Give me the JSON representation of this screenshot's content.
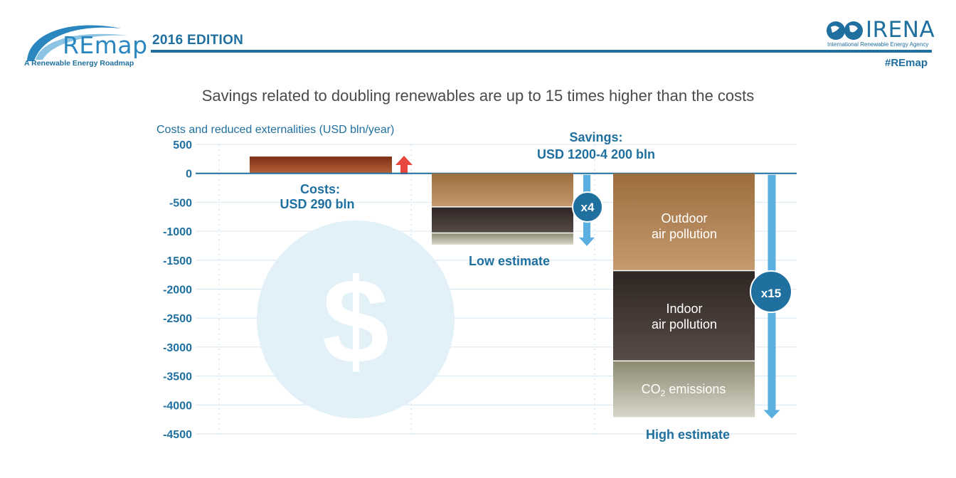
{
  "header": {
    "brand": "REmap",
    "tagline": "A Renewable Energy Roadmap",
    "edition": "2016 EDITION",
    "org": "IRENA",
    "org_subtitle": "International Renewable Energy Agency",
    "hashtag": "#REmap"
  },
  "colors": {
    "accent": "#1f6f9f",
    "arrow_light": "#5aaee0",
    "arrow_up": "#e8473f",
    "outdoor": "#a9774a",
    "indoor": "#3d302b",
    "co2": "#aaa894",
    "costs": "#8f3a1f"
  },
  "icons": {
    "coin": "dollar-coin-icon",
    "logo": "remap-swoosh-icon",
    "globe": "irena-globe-icon"
  },
  "chart_data": {
    "type": "bar",
    "title": "Savings related to doubling renewables are up to 15 times higher than the costs",
    "ylabel": "Costs and reduced externalities (USD bln/year)",
    "ylim": [
      -4500,
      500
    ],
    "yticks": [
      500,
      0,
      -500,
      -1000,
      -1500,
      -2000,
      -2500,
      -3000,
      -3500,
      -4000,
      -4500
    ],
    "yticks_text": [
      "500",
      "0",
      "-500",
      "-1000",
      "-1500",
      "-2000",
      "-2500",
      "-3000",
      "-3500",
      "-4000",
      "-4500"
    ],
    "grid": true,
    "costs": {
      "label": "Costs:",
      "value_label": "USD 290 bln",
      "value": 290
    },
    "savings": {
      "label": "Savings:",
      "value_label": "USD 1200-4 200 bln"
    },
    "categories": [
      "Low estimate",
      "High estimate"
    ],
    "series": [
      {
        "name": "Outdoor air pollution",
        "values": [
          -580,
          -1680
        ]
      },
      {
        "name": "Indoor air pollution",
        "values": [
          -450,
          -1560
        ]
      },
      {
        "name": "CO2 emissions",
        "values": [
          -200,
          -970
        ]
      }
    ],
    "annotations": {
      "outdoor_label": [
        "Outdoor",
        "air pollution"
      ],
      "indoor_label": [
        "Indoor",
        "air pollution"
      ],
      "co2_label": {
        "prefix": "CO",
        "sub": "2",
        "suffix": " emissions"
      },
      "low_multiplier": "x4",
      "high_multiplier": "x15"
    }
  }
}
